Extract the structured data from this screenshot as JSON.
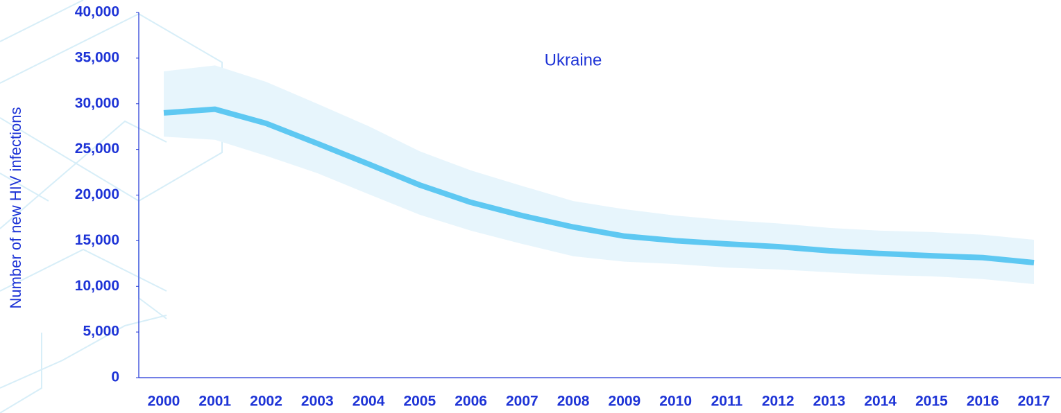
{
  "chart_data": {
    "type": "line",
    "title": "Ukraine",
    "y_label": "Number of new HIV infections",
    "categories": [
      "2000",
      "2001",
      "2002",
      "2003",
      "2004",
      "2005",
      "2006",
      "2007",
      "2008",
      "2009",
      "2010",
      "2011",
      "2012",
      "2013",
      "2014",
      "2015",
      "2016",
      "2017"
    ],
    "values": [
      29000,
      29400,
      27850,
      25650,
      23400,
      21100,
      19200,
      17750,
      16500,
      15500,
      15000,
      14650,
      14350,
      13900,
      13600,
      13350,
      13150,
      12600
    ],
    "upper": [
      33550,
      34200,
      32400,
      30000,
      27550,
      24800,
      22700,
      21000,
      19350,
      18450,
      17750,
      17250,
      16900,
      16400,
      16100,
      15950,
      15650,
      15100
    ],
    "lower": [
      26400,
      26050,
      24300,
      22400,
      20100,
      17850,
      16100,
      14650,
      13300,
      12700,
      12450,
      12050,
      11850,
      11550,
      11250,
      11100,
      10800,
      10250
    ],
    "color": "#5ec8f2",
    "band_color": "#e7f5fc",
    "ylim": [
      0,
      40000
    ],
    "yticks": [
      0,
      {
        "value": 5000,
        "label": "5,000"
      },
      {
        "value": 10000,
        "label": "10,000"
      },
      {
        "value": 15000,
        "label": "15,000"
      },
      {
        "value": 20000,
        "label": "20,000"
      },
      {
        "value": 25000,
        "label": "25,000"
      },
      {
        "value": 30000,
        "label": "30,000"
      },
      {
        "value": 35000,
        "label": "35,000"
      },
      {
        "value": 40000,
        "label": "40,000"
      }
    ]
  }
}
